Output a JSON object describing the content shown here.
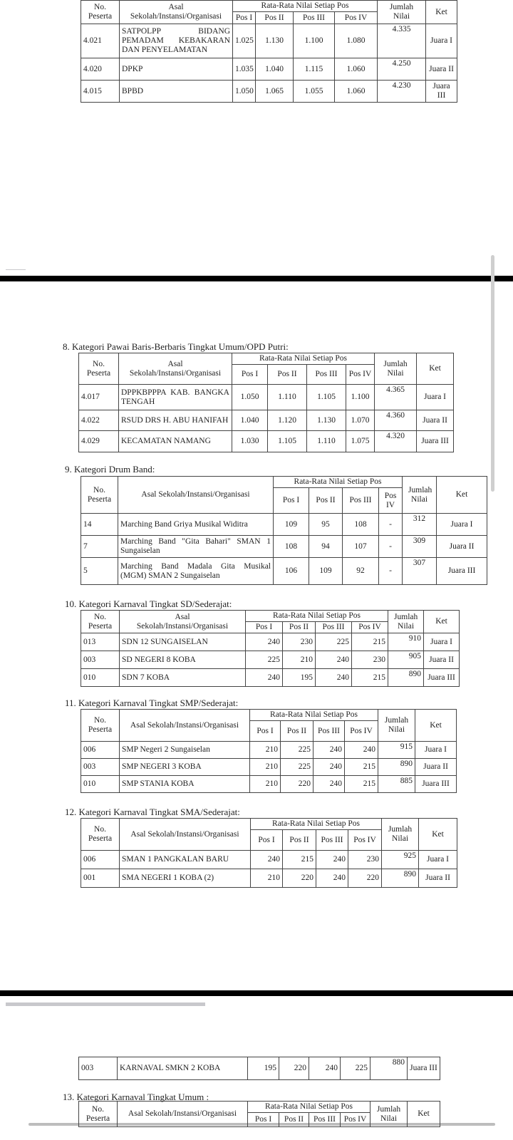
{
  "header": {
    "no": "No.",
    "peserta": "Peserta",
    "asal1": "Asal",
    "asal2": "Sekolah/Instansi/Organisasi",
    "asal_full": "Asal Sekolah/Instansi/Organisasi",
    "rata": "Rata-Rata Nilai Setiap Pos",
    "pos": [
      "Pos I",
      "Pos II",
      "Pos III",
      "Pos IV"
    ],
    "jumlah": "Jumlah Nilai",
    "ket": "Ket"
  },
  "sections": [
    {
      "title": "",
      "rows": [
        [
          "4.021",
          "SATPOLPP BIDANG PEMADAM KEBAKARAN DAN PENYELAMATAN",
          "1.025",
          "1.130",
          "1.100",
          "1.080",
          "4.335",
          "Juara I"
        ],
        [
          "4.020",
          "DPKP",
          "1.035",
          "1.040",
          "1.115",
          "1.060",
          "4.250",
          "Juara II"
        ],
        [
          "4.015",
          "BPBD",
          "1.050",
          "1.065",
          "1.055",
          "1.060",
          "4.230",
          "Juara III"
        ]
      ]
    },
    {
      "title": "8.  Kategori Pawai Baris-Berbaris Tingkat Umum/OPD Putri:",
      "rows": [
        [
          "4.017",
          "DPPKBPPPA KAB. BANGKA TENGAH",
          "1.050",
          "1.110",
          "1.105",
          "1.100",
          "4.365",
          "Juara I"
        ],
        [
          "4.022",
          "RSUD DRS H. ABU HANIFAH",
          "1.040",
          "1.120",
          "1.130",
          "1.070",
          "4.360",
          "Juara II"
        ],
        [
          "4.029",
          "KECAMATAN NAMANG",
          "1.030",
          "1.105",
          "1.110",
          "1.075",
          "4.320",
          "Juara III"
        ]
      ]
    },
    {
      "title": "9.  Kategori Drum Band:",
      "rows": [
        [
          "14",
          "Marching Band Griya Musikal Widitra",
          "109",
          "95",
          "108",
          "-",
          "312",
          "Juara I"
        ],
        [
          "7",
          "Marching Band \"Gita Bahari\" SMAN 1 Sungaiselan",
          "108",
          "94",
          "107",
          "-",
          "309",
          "Juara II"
        ],
        [
          "5",
          "Marching Band Madala Gita Musikal (MGM) SMAN 2 Sungaiselan",
          "106",
          "109",
          "92",
          "-",
          "307",
          "Juara III"
        ]
      ]
    },
    {
      "title": "10. Kategori Karnaval Tingkat SD/Sederajat:",
      "rows": [
        [
          "013",
          "SDN 12 SUNGAISELAN",
          "240",
          "230",
          "225",
          "215",
          "910",
          "Juara I"
        ],
        [
          "003",
          "SD NEGERI 8 KOBA",
          "225",
          "210",
          "240",
          "230",
          "905",
          "Juara II"
        ],
        [
          "010",
          "SDN 7 KOBA",
          "240",
          "195",
          "240",
          "215",
          "890",
          "Juara III"
        ]
      ]
    },
    {
      "title": "11. Kategori Karnaval Tingkat SMP/Sederajat:",
      "rows": [
        [
          "006",
          "SMP Negeri 2 Sungaiselan",
          "210",
          "225",
          "240",
          "240",
          "915",
          "Juara I"
        ],
        [
          "003",
          "SMP NEGERI 3 KOBA",
          "210",
          "225",
          "240",
          "215",
          "890",
          "Juara II"
        ],
        [
          "010",
          "SMP STANIA KOBA",
          "210",
          "220",
          "240",
          "215",
          "885",
          "Juara III"
        ]
      ]
    },
    {
      "title": "12. Kategori Karnaval Tingkat SMA/Sederajat:",
      "rows": [
        [
          "006",
          "SMAN 1 PANGKALAN BARU",
          "240",
          "215",
          "240",
          "230",
          "925",
          "Juara I"
        ],
        [
          "001",
          "SMA NEGERI 1 KOBA (2)",
          "210",
          "220",
          "240",
          "220",
          "890",
          "Juara II"
        ]
      ]
    },
    {
      "title": "",
      "rows": [
        [
          "003",
          "KARNAVAL SMKN 2 KOBA",
          "195",
          "220",
          "240",
          "225",
          "880",
          "Juara III"
        ]
      ]
    },
    {
      "title": "13. Kategori Karnaval Tingkat Umum :",
      "rows": []
    }
  ]
}
